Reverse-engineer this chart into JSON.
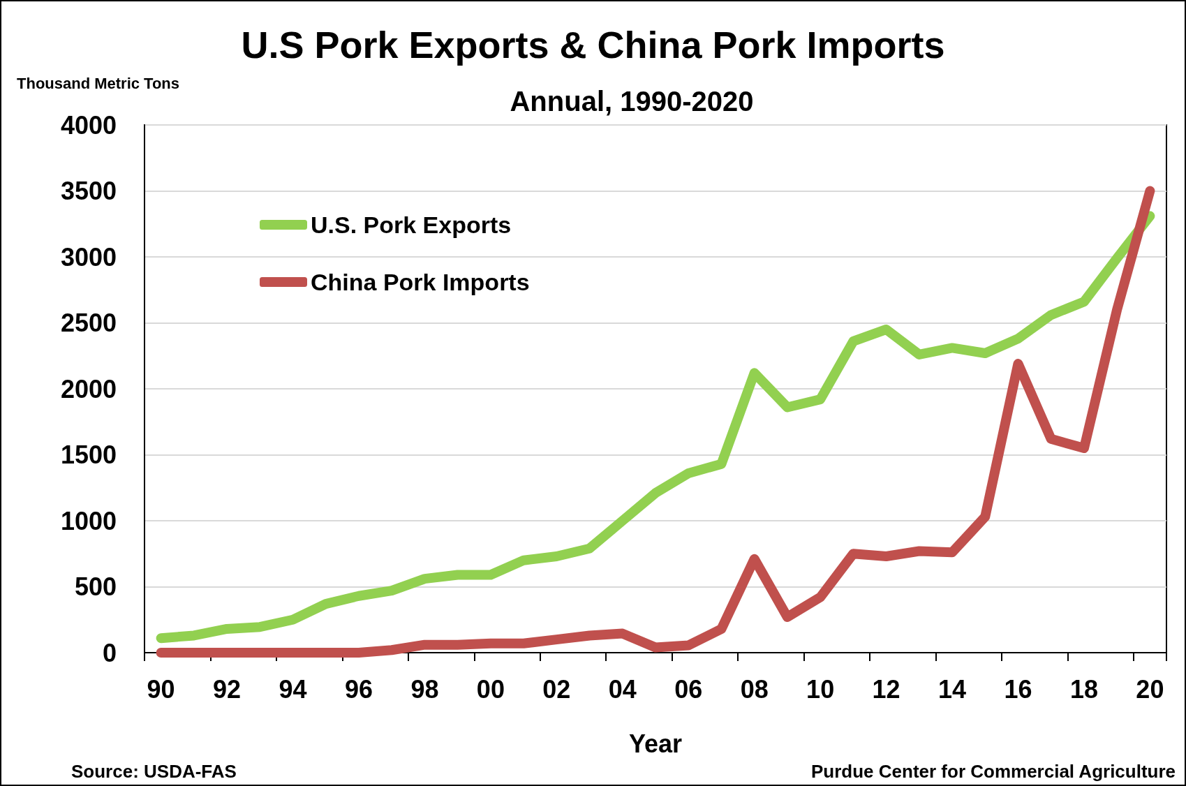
{
  "chart_data": {
    "type": "line",
    "title": "U.S Pork Exports & China Pork Imports",
    "subtitle": "Annual, 1990-2020",
    "ylabel": "Thousand Metric Tons",
    "xlabel": "Year",
    "annotations": [
      "Source: USDA-FAS",
      "Purdue Center for Commercial Agriculture"
    ],
    "categories": [
      "90",
      null,
      "92",
      null,
      "94",
      null,
      "96",
      null,
      "98",
      null,
      "00",
      null,
      "02",
      null,
      "04",
      null,
      "06",
      null,
      "08",
      null,
      "10",
      null,
      "12",
      null,
      "14",
      null,
      "16",
      null,
      "18",
      null,
      "20"
    ],
    "series": [
      {
        "name": "U.S. Pork Exports",
        "color": "#92d050",
        "values": [
          110,
          130,
          180,
          195,
          250,
          370,
          430,
          470,
          560,
          590,
          590,
          700,
          730,
          790,
          1000,
          1210,
          1360,
          1430,
          2120,
          1860,
          1920,
          2360,
          2450,
          2260,
          2310,
          2270,
          2380,
          2560,
          2660,
          2990,
          3310
        ]
      },
      {
        "name": "China Pork Imports",
        "color": "#c0504d",
        "values": [
          0,
          0,
          0,
          0,
          0,
          0,
          0,
          20,
          60,
          60,
          70,
          70,
          100,
          130,
          145,
          40,
          55,
          180,
          710,
          270,
          420,
          750,
          730,
          770,
          760,
          1030,
          2190,
          1620,
          1550,
          2600,
          3500
        ]
      }
    ],
    "ylim": [
      0,
      4000
    ],
    "yticks": [
      0,
      500,
      1000,
      1500,
      2000,
      2500,
      3000,
      3500,
      4000
    ],
    "grid": "y",
    "legend": "top left",
    "marker": "none",
    "line_style": "solid"
  }
}
